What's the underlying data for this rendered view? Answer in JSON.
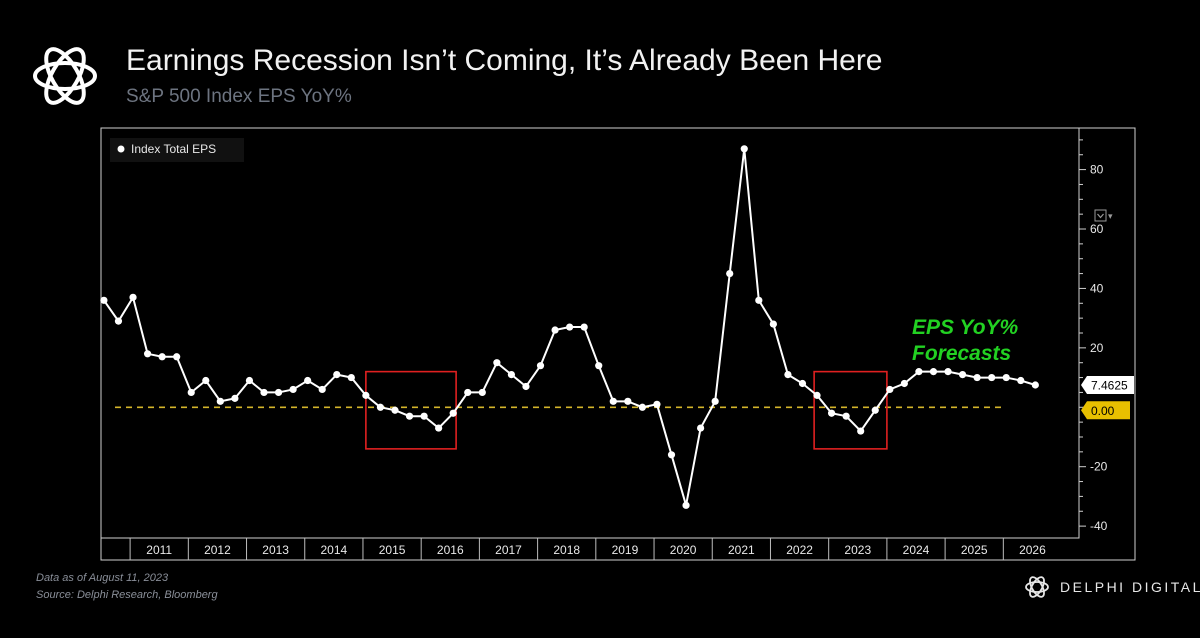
{
  "header": {
    "title": "Earnings Recession Isn’t Coming, It’s Already Been Here",
    "subtitle": "S&P 500 Index EPS YoY%",
    "logo_icon": "knot-logo-icon"
  },
  "footer": {
    "date_note": "Data as of August 11, 2023",
    "source_note": "Source: Delphi Research, Bloomberg",
    "brand": "DELPHI DIGITAL",
    "brand_icon": "delphi-logo-icon"
  },
  "chart_data": {
    "type": "line",
    "legend": {
      "label": "Index Total EPS",
      "placement": "top-left"
    },
    "x_ticks": [
      "2011",
      "2012",
      "2013",
      "2014",
      "2015",
      "2016",
      "2017",
      "2018",
      "2019",
      "2020",
      "2021",
      "2022",
      "2023",
      "2024",
      "2025",
      "2026"
    ],
    "y_ticks": [
      -40,
      -20,
      0,
      20,
      40,
      60,
      80
    ],
    "ylim": [
      -44,
      94
    ],
    "series": [
      {
        "name": "Index Total EPS",
        "color": "#ffffff",
        "points": [
          {
            "x": 2010.55,
            "y": 36
          },
          {
            "x": 2010.8,
            "y": 29
          },
          {
            "x": 2011.05,
            "y": 37
          },
          {
            "x": 2011.3,
            "y": 18
          },
          {
            "x": 2011.55,
            "y": 17
          },
          {
            "x": 2011.8,
            "y": 17
          },
          {
            "x": 2012.05,
            "y": 5
          },
          {
            "x": 2012.3,
            "y": 9
          },
          {
            "x": 2012.55,
            "y": 2
          },
          {
            "x": 2012.8,
            "y": 3
          },
          {
            "x": 2013.05,
            "y": 9
          },
          {
            "x": 2013.3,
            "y": 5
          },
          {
            "x": 2013.55,
            "y": 5
          },
          {
            "x": 2013.8,
            "y": 6
          },
          {
            "x": 2014.05,
            "y": 9
          },
          {
            "x": 2014.3,
            "y": 6
          },
          {
            "x": 2014.55,
            "y": 11
          },
          {
            "x": 2014.8,
            "y": 10
          },
          {
            "x": 2015.05,
            "y": 4
          },
          {
            "x": 2015.3,
            "y": 0
          },
          {
            "x": 2015.55,
            "y": -1
          },
          {
            "x": 2015.8,
            "y": -3
          },
          {
            "x": 2016.05,
            "y": -3
          },
          {
            "x": 2016.3,
            "y": -7
          },
          {
            "x": 2016.55,
            "y": -2
          },
          {
            "x": 2016.8,
            "y": 5
          },
          {
            "x": 2017.05,
            "y": 5
          },
          {
            "x": 2017.3,
            "y": 15
          },
          {
            "x": 2017.55,
            "y": 11
          },
          {
            "x": 2017.8,
            "y": 7
          },
          {
            "x": 2018.05,
            "y": 14
          },
          {
            "x": 2018.3,
            "y": 26
          },
          {
            "x": 2018.55,
            "y": 27
          },
          {
            "x": 2018.8,
            "y": 27
          },
          {
            "x": 2019.05,
            "y": 14
          },
          {
            "x": 2019.3,
            "y": 2
          },
          {
            "x": 2019.55,
            "y": 2
          },
          {
            "x": 2019.8,
            "y": 0
          },
          {
            "x": 2020.05,
            "y": 1
          },
          {
            "x": 2020.3,
            "y": -16
          },
          {
            "x": 2020.55,
            "y": -33
          },
          {
            "x": 2020.8,
            "y": -7
          },
          {
            "x": 2021.05,
            "y": 2
          },
          {
            "x": 2021.3,
            "y": 45
          },
          {
            "x": 2021.55,
            "y": 87
          },
          {
            "x": 2021.8,
            "y": 36
          },
          {
            "x": 2022.05,
            "y": 28
          },
          {
            "x": 2022.3,
            "y": 11
          },
          {
            "x": 2022.55,
            "y": 8
          },
          {
            "x": 2022.8,
            "y": 4
          },
          {
            "x": 2023.05,
            "y": -2
          },
          {
            "x": 2023.3,
            "y": -3
          },
          {
            "x": 2023.55,
            "y": -8
          },
          {
            "x": 2023.8,
            "y": -1
          },
          {
            "x": 2024.05,
            "y": 6
          },
          {
            "x": 2024.3,
            "y": 8
          },
          {
            "x": 2024.55,
            "y": 12
          },
          {
            "x": 2024.8,
            "y": 12
          },
          {
            "x": 2025.05,
            "y": 12
          },
          {
            "x": 2025.3,
            "y": 11
          },
          {
            "x": 2025.55,
            "y": 10
          },
          {
            "x": 2025.8,
            "y": 10
          },
          {
            "x": 2026.05,
            "y": 10
          },
          {
            "x": 2026.3,
            "y": 9
          },
          {
            "x": 2026.55,
            "y": 7.5
          }
        ]
      }
    ],
    "zero_line": {
      "value": 0,
      "color": "#d4b52a",
      "style": "dashed"
    },
    "last_value_label": "7.4625",
    "zero_label": "0.00",
    "zero_label_color": "#e8c000",
    "annotation": {
      "text_line1": "EPS YoY%",
      "text_line2": "Forecasts",
      "color": "#22d122"
    },
    "highlight_boxes": [
      {
        "x0": 2015.05,
        "x1": 2016.6,
        "y0": -14,
        "y1": 12,
        "color": "#e02020"
      },
      {
        "x0": 2022.75,
        "x1": 2024.0,
        "y0": -14,
        "y1": 12,
        "color": "#e02020"
      }
    ],
    "grid": false
  }
}
